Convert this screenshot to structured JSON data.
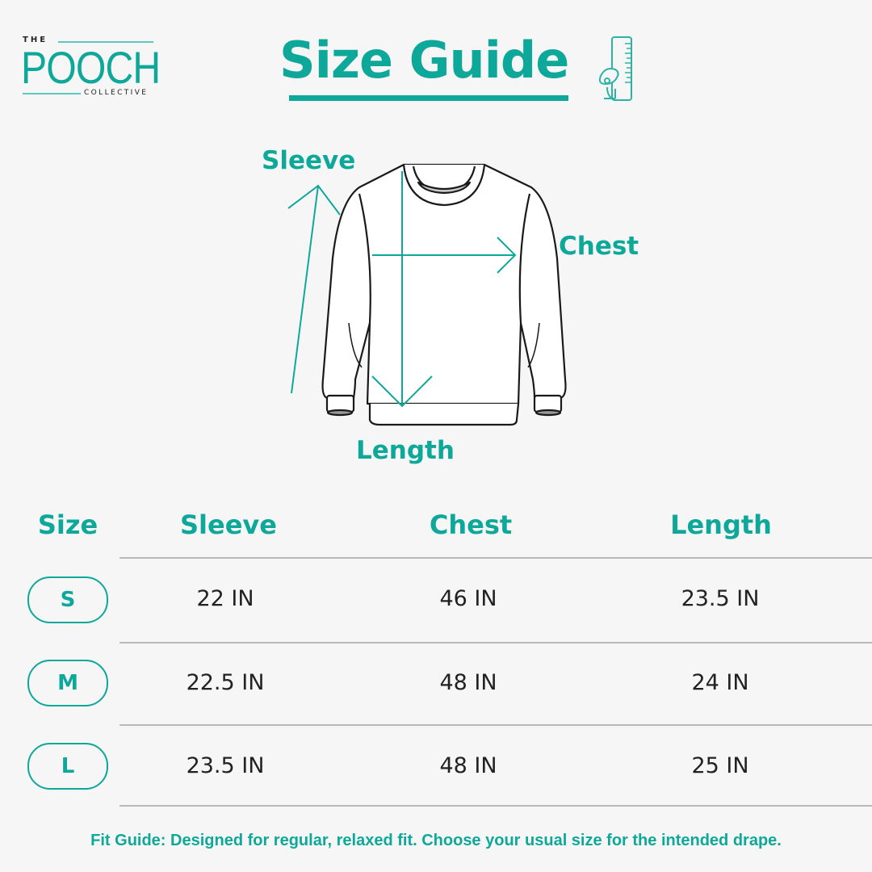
{
  "brand": {
    "the": "THE",
    "name": "POOCH",
    "sub": "COLLECTIVE"
  },
  "title": "Size Guide",
  "diagram": {
    "sleeve": "Sleeve",
    "chest": "Chest",
    "length": "Length"
  },
  "table": {
    "headers": [
      "Size",
      "Sleeve",
      "Chest",
      "Length"
    ],
    "rows": [
      {
        "size": "S",
        "sleeve": "22 IN",
        "chest": "46 IN",
        "length": "23.5 IN"
      },
      {
        "size": "M",
        "sleeve": "22.5 IN",
        "chest": "48 IN",
        "length": "24 IN"
      },
      {
        "size": "L",
        "sleeve": "23.5 IN",
        "chest": "48 IN",
        "length": "25 IN"
      }
    ]
  },
  "fit_guide": "Fit Guide: Designed for regular, relaxed fit. Choose your usual size for the intended drape.",
  "colors": {
    "accent": "#0ea89b",
    "background": "#f6f6f6"
  },
  "icons": [
    "dog-ruler-icon"
  ]
}
